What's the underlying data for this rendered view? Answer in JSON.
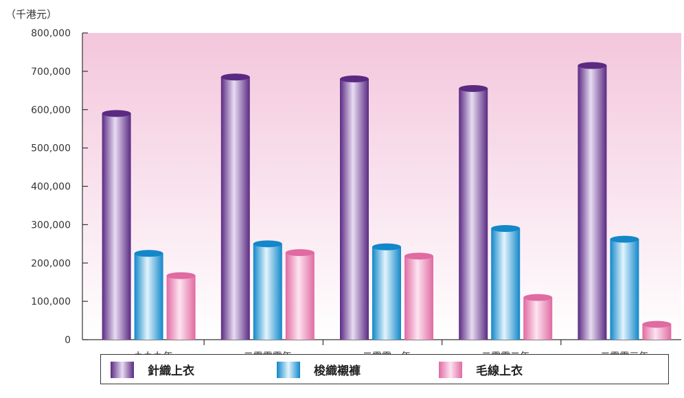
{
  "unit_label": "（千港元）",
  "chart_data": {
    "type": "bar",
    "categories": [
      "一九九九年",
      "二零零零年",
      "二零零一年",
      "二零零二年",
      "二零零三年"
    ],
    "series": [
      {
        "name": "針織上衣",
        "values": [
          590000,
          685000,
          680000,
          655000,
          715000
        ],
        "color": "#7a3fa0"
      },
      {
        "name": "梭織襯褲",
        "values": [
          225000,
          250000,
          242000,
          290000,
          262000
        ],
        "color": "#1f9fe0"
      },
      {
        "name": "毛線上衣",
        "values": [
          167000,
          227000,
          218000,
          110000,
          40000
        ],
        "color": "#ef7fb4"
      }
    ],
    "ylim": [
      0,
      800000
    ],
    "yticks": [
      "0",
      "100,000",
      "200,000",
      "300,000",
      "400,000",
      "500,000",
      "600,000",
      "700,000",
      "800,000"
    ],
    "xlabel": "",
    "ylabel": "",
    "legend": "bottom"
  }
}
